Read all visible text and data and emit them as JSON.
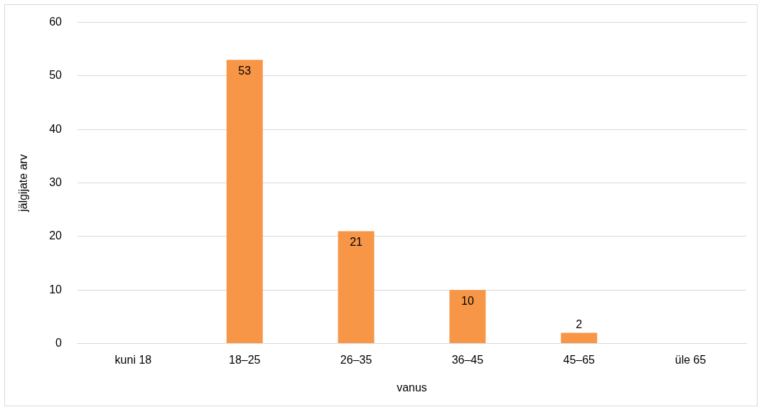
{
  "chart_data": {
    "type": "bar",
    "xlabel": "vanus",
    "ylabel": "jälgijate arv",
    "categories": [
      "kuni 18",
      "18–25",
      "26–35",
      "36–45",
      "45–65",
      "üle 65"
    ],
    "values": [
      0,
      53,
      21,
      10,
      2,
      0
    ],
    "color": "#f79646",
    "value_labels": [
      null,
      "53",
      "21",
      "10",
      "2",
      null
    ],
    "ylim": [
      0,
      60
    ],
    "yticks": [
      0,
      10,
      20,
      30,
      40,
      50,
      60
    ],
    "grid": "y",
    "legend": false
  }
}
